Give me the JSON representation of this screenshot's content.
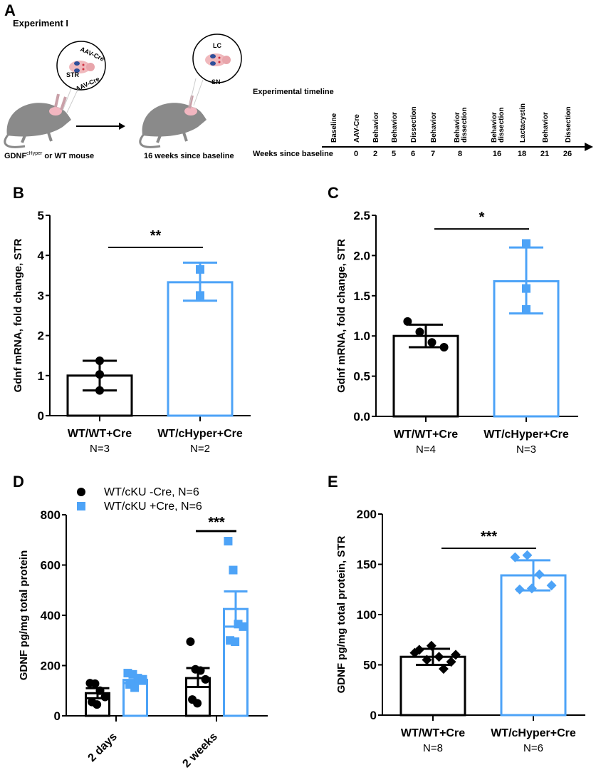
{
  "colors": {
    "black": "#000000",
    "blue": "#4da3f7",
    "mouse": "#8a8a8a",
    "ear": "#f2b6c0",
    "brain": "#f0b9bd",
    "striatum": "#2e4f9a"
  },
  "panel_a": {
    "letter": "A",
    "title": "Experiment I",
    "injection_labels": {
      "top": "AAV-Cre",
      "str": "STR",
      "bottom": "AAV-Cre",
      "lc": "LC",
      "sn": "SN"
    },
    "mouse1_caption_main": "GDNF",
    "mouse1_caption_sup": "cHyper",
    "mouse1_caption_rest": " or WT mouse",
    "mouse2_caption": "16 weeks since baseline",
    "timeline_title": "Experimental timeline",
    "weeks_label": "Weeks since baseline",
    "events": [
      {
        "label": [
          "Baseline"
        ],
        "week": ""
      },
      {
        "label": [
          "AAV-Cre"
        ],
        "week": "0"
      },
      {
        "label": [
          "Behavior"
        ],
        "week": "2"
      },
      {
        "label": [
          "Behavior"
        ],
        "week": "5"
      },
      {
        "label": [
          "Dissection"
        ],
        "week": "6"
      },
      {
        "label": [
          "Behavior"
        ],
        "week": "7"
      },
      {
        "label": [
          "Behavior",
          "dissection"
        ],
        "week": "8"
      },
      {
        "label": [
          "Behavior",
          "dissection"
        ],
        "week": "16"
      },
      {
        "label": [
          "Lactacystin"
        ],
        "week": "18"
      },
      {
        "label": [
          "Behavior"
        ],
        "week": "21"
      },
      {
        "label": [
          "Dissection"
        ],
        "week": "26"
      }
    ]
  },
  "chart_data": [
    {
      "panel": "B",
      "type": "bar",
      "ylabel": "Gdnf mRNA, fold change, STR",
      "ylim": [
        0,
        5
      ],
      "yticks": [
        "0",
        "1",
        "2",
        "3",
        "4",
        "5"
      ],
      "ytick_values": [
        0,
        1,
        2,
        3,
        4,
        5
      ],
      "categories": [
        "WT/WT+Cre",
        "WT/cHyper+Cre"
      ],
      "n_labels": [
        "N=3",
        "N=2"
      ],
      "bars": [
        {
          "mean": 1.0,
          "err_low": 0.63,
          "err_high": 1.37,
          "color": "black",
          "marker": "circle",
          "points": [
            1.37,
            1.03,
            0.63
          ]
        },
        {
          "mean": 3.33,
          "err_low": 2.87,
          "err_high": 3.82,
          "color": "blue",
          "marker": "square",
          "points": [
            3.65,
            3.0
          ]
        }
      ],
      "significance": {
        "text": "**",
        "y": 4.2
      }
    },
    {
      "panel": "C",
      "type": "bar",
      "ylabel": "Gdnf mRNA, fold change, STR",
      "ylim": [
        0,
        2.5
      ],
      "yticks": [
        "0.0",
        "0.5",
        "1.0",
        "1.5",
        "2.0",
        "2.5"
      ],
      "ytick_values": [
        0,
        0.5,
        1,
        1.5,
        2,
        2.5
      ],
      "categories": [
        "WT/WT+Cre",
        "WT/cHyper+Cre"
      ],
      "n_labels": [
        "N=4",
        "N=3"
      ],
      "bars": [
        {
          "mean": 1.0,
          "err_low": 0.86,
          "err_high": 1.14,
          "color": "black",
          "marker": "circle",
          "points": [
            1.18,
            1.05,
            0.92,
            0.86
          ]
        },
        {
          "mean": 1.68,
          "err_low": 1.28,
          "err_high": 2.1,
          "color": "blue",
          "marker": "square",
          "points": [
            2.15,
            1.59,
            1.33
          ]
        }
      ],
      "significance": {
        "text": "*",
        "y": 2.33
      }
    },
    {
      "panel": "D",
      "type": "bar",
      "ylabel": "GDNF pg/mg total protein",
      "ylim": [
        0,
        800
      ],
      "yticks": [
        "0",
        "200",
        "400",
        "600",
        "800"
      ],
      "ytick_values": [
        0,
        200,
        400,
        600,
        800
      ],
      "categories": [
        "2 days",
        "2 weeks"
      ],
      "legend": {
        "position": "top-left",
        "entries": [
          "WT/cKU -Cre, N=6",
          "WT/cKU +Cre, N=6"
        ]
      },
      "series": [
        {
          "name": "WT/cKU -Cre, N=6",
          "color": "black",
          "marker": "circle",
          "means": [
            90,
            150
          ],
          "err_low": [
            70,
            115
          ],
          "err_high": [
            110,
            190
          ],
          "points": [
            [
              130,
              128,
              100,
              75,
              55,
              45
            ],
            [
              295,
              185,
              180,
              145,
              65,
              50
            ]
          ]
        },
        {
          "name": "WT/cKU +Cre, N=6",
          "color": "blue",
          "marker": "square",
          "means": [
            143,
            425
          ],
          "err_low": [
            130,
            355
          ],
          "err_high": [
            158,
            495
          ],
          "points": [
            [
              170,
              165,
              150,
              140,
              125,
              112
            ],
            [
              695,
              580,
              365,
              355,
              300,
              295
            ]
          ]
        }
      ],
      "significance": {
        "text": "***",
        "y": 735,
        "category": "2 weeks"
      }
    },
    {
      "panel": "E",
      "type": "bar",
      "ylabel": "GDNF pg/mg total protein, STR",
      "ylim": [
        0,
        200
      ],
      "yticks": [
        "0",
        "50",
        "100",
        "150",
        "200"
      ],
      "ytick_values": [
        0,
        50,
        100,
        150,
        200
      ],
      "categories": [
        "WT/WT+Cre",
        "WT/cHyper+Cre"
      ],
      "n_labels": [
        "N=8",
        "N=6"
      ],
      "bars": [
        {
          "mean": 58,
          "err_low": 50,
          "err_high": 66,
          "color": "black",
          "marker": "diamond",
          "points": [
            62,
            55,
            58,
            53,
            65,
            69,
            46,
            60
          ]
        },
        {
          "mean": 139,
          "err_low": 124,
          "err_high": 154,
          "color": "blue",
          "marker": "diamond",
          "points": [
            157,
            159,
            140,
            129,
            125,
            126
          ]
        }
      ],
      "significance": {
        "text": "***",
        "y": 166
      }
    }
  ]
}
